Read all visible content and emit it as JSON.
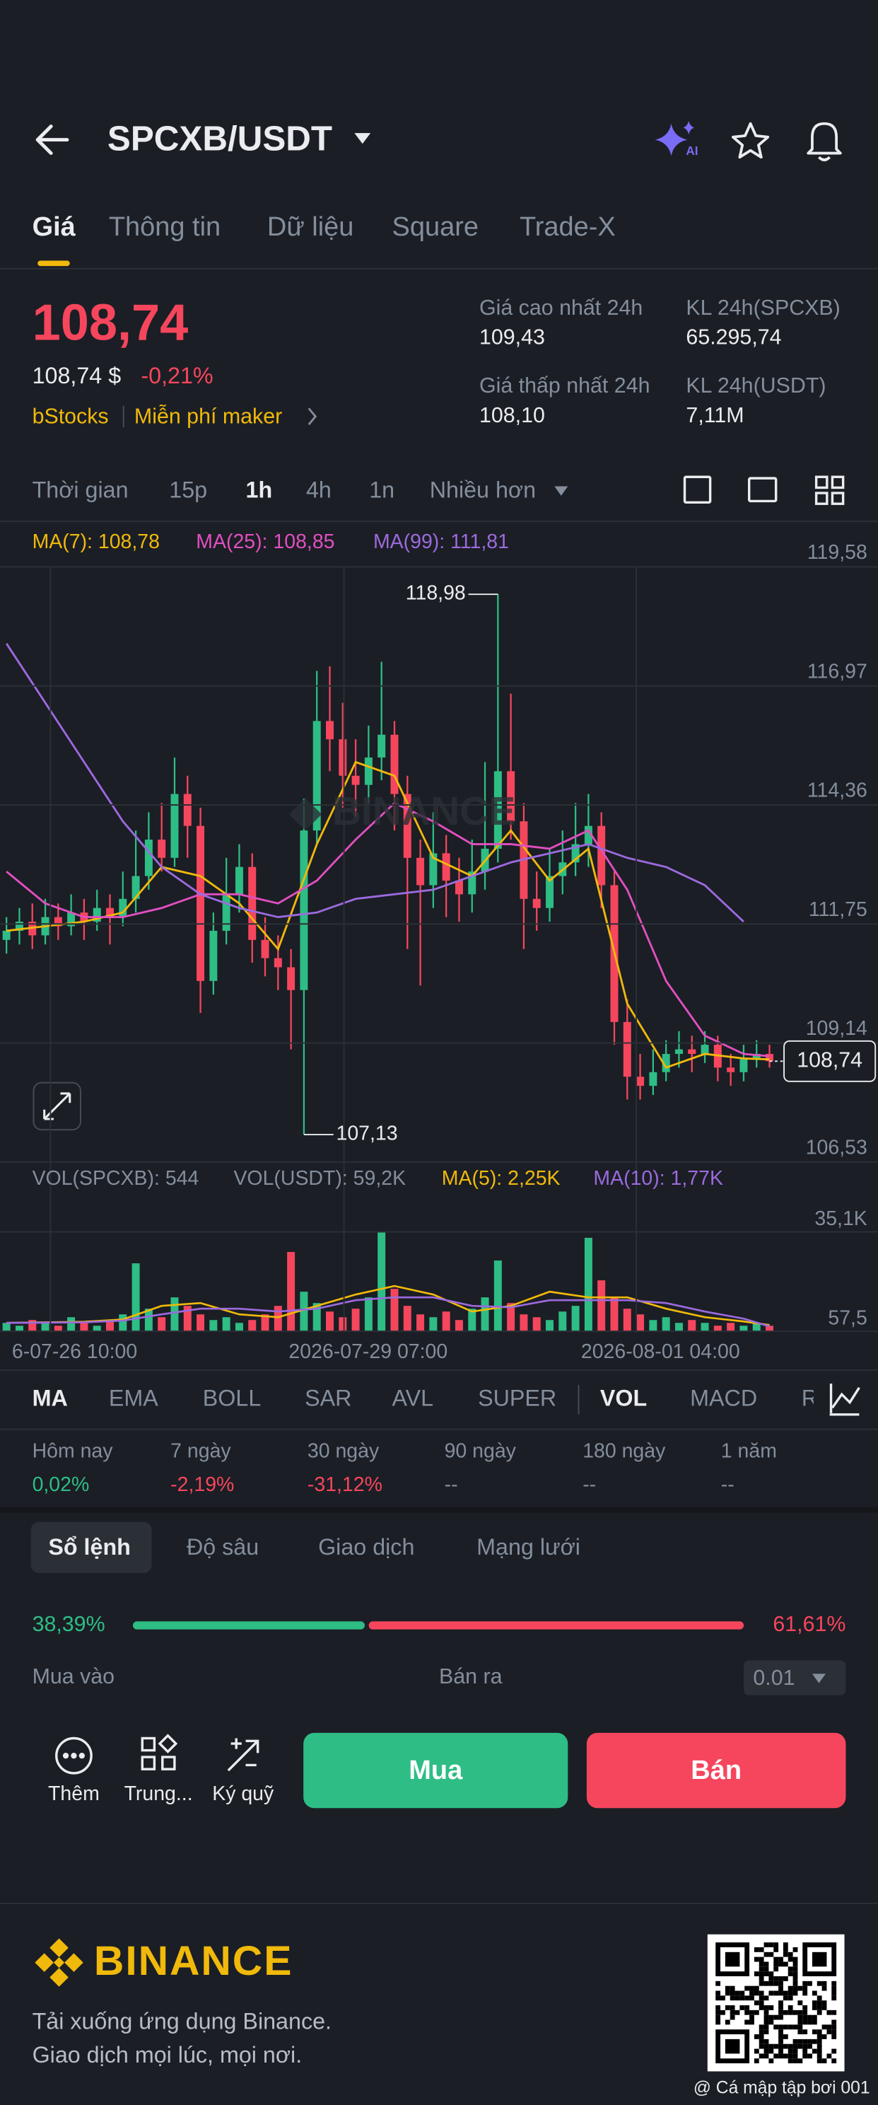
{
  "header": {
    "title": "SPCXB/USDT"
  },
  "tabs": [
    "Giá",
    "Thông tin",
    "Dữ liệu",
    "Square",
    "Trade-X"
  ],
  "price": {
    "last": "108,74",
    "fiat": "108,74 $",
    "change": "-0,21%",
    "tag": "bStocks",
    "promo": "Miễn phí maker"
  },
  "stats": [
    {
      "label": "Giá cao nhất 24h",
      "value": "109,43"
    },
    {
      "label": "KL 24h(SPCXB)",
      "value": "65.295,74"
    },
    {
      "label": "Giá thấp nhất 24h",
      "value": "108,10"
    },
    {
      "label": "KL 24h(USDT)",
      "value": "7,11M"
    }
  ],
  "intervals": [
    "Thời gian",
    "15p",
    "1h",
    "4h",
    "1n",
    "Nhiều hơn"
  ],
  "chart_data": {
    "type": "candlestick",
    "ylim": [
      106.53,
      119.58
    ],
    "yticks": [
      {
        "value": 119.58,
        "label": "119,58"
      },
      {
        "value": 116.97,
        "label": "116,97"
      },
      {
        "value": 114.36,
        "label": "114,36"
      },
      {
        "value": 111.75,
        "label": "111,75"
      },
      {
        "value": 109.14,
        "label": "109,14"
      },
      {
        "value": 106.53,
        "label": "106,53"
      }
    ],
    "xlim": [
      -0.5,
      59.5
    ],
    "xticks": [
      {
        "value": 3.4,
        "label": "6-07-26 10:00"
      },
      {
        "value": 26.1,
        "label": "2026-07-29 07:00"
      },
      {
        "value": 48.7,
        "label": "2026-08-01 04:00"
      }
    ],
    "grid": true,
    "up_color": "#2ebd85",
    "down_color": "#f6465d",
    "high_label": "118,98",
    "low_label": "107,13",
    "last_label": "108,74",
    "candles": [
      [
        111.4,
        111.9,
        111.1,
        111.6
      ],
      [
        111.6,
        112.1,
        111.3,
        111.8
      ],
      [
        111.8,
        112.2,
        111.2,
        111.5
      ],
      [
        111.5,
        112.3,
        111.3,
        111.9
      ],
      [
        111.9,
        112.2,
        111.4,
        111.7
      ],
      [
        111.7,
        112.4,
        111.5,
        112.0
      ],
      [
        112.0,
        112.3,
        111.4,
        111.8
      ],
      [
        111.8,
        112.5,
        111.6,
        112.1
      ],
      [
        112.1,
        112.4,
        111.3,
        111.9
      ],
      [
        111.9,
        112.9,
        111.7,
        112.3
      ],
      [
        112.3,
        113.8,
        112.0,
        112.8
      ],
      [
        112.8,
        114.2,
        112.5,
        113.6
      ],
      [
        113.6,
        114.4,
        112.9,
        113.2
      ],
      [
        113.2,
        115.4,
        113.0,
        114.6
      ],
      [
        114.6,
        115.0,
        113.2,
        113.9
      ],
      [
        113.9,
        114.3,
        109.8,
        110.5
      ],
      [
        110.5,
        112.0,
        110.2,
        111.6
      ],
      [
        111.6,
        113.2,
        111.3,
        112.4
      ],
      [
        112.4,
        113.5,
        112.0,
        113.0
      ],
      [
        113.0,
        113.3,
        110.9,
        111.4
      ],
      [
        111.4,
        111.9,
        110.6,
        111.0
      ],
      [
        111.0,
        111.5,
        110.3,
        110.8
      ],
      [
        110.8,
        111.2,
        109.0,
        110.3
      ],
      [
        110.3,
        114.5,
        107.13,
        113.8
      ],
      [
        113.8,
        117.3,
        113.5,
        116.2
      ],
      [
        116.2,
        117.4,
        115.1,
        115.8
      ],
      [
        115.8,
        116.6,
        114.3,
        115.0
      ],
      [
        115.0,
        115.8,
        114.1,
        114.8
      ],
      [
        114.8,
        116.1,
        114.4,
        115.4
      ],
      [
        115.4,
        117.5,
        114.9,
        115.9
      ],
      [
        115.9,
        116.2,
        113.8,
        114.6
      ],
      [
        114.6,
        115.0,
        111.2,
        113.2
      ],
      [
        113.2,
        113.6,
        110.4,
        112.6
      ],
      [
        112.6,
        114.2,
        112.1,
        113.3
      ],
      [
        113.3,
        113.7,
        111.9,
        112.7
      ],
      [
        112.7,
        113.2,
        111.8,
        112.4
      ],
      [
        112.4,
        113.6,
        112.0,
        112.9
      ],
      [
        112.9,
        115.3,
        112.5,
        113.4
      ],
      [
        113.4,
        118.98,
        113.1,
        115.1
      ],
      [
        115.1,
        116.8,
        113.6,
        114.0
      ],
      [
        114.0,
        114.4,
        111.2,
        112.3
      ],
      [
        112.3,
        112.9,
        111.6,
        112.1
      ],
      [
        112.1,
        113.4,
        111.8,
        112.8
      ],
      [
        112.8,
        113.8,
        112.4,
        113.1
      ],
      [
        113.1,
        114.4,
        112.8,
        113.5
      ],
      [
        113.5,
        114.6,
        113.0,
        113.9
      ],
      [
        113.9,
        114.2,
        112.1,
        112.6
      ],
      [
        112.6,
        112.9,
        109.1,
        109.6
      ],
      [
        109.6,
        110.1,
        107.9,
        108.4
      ],
      [
        108.4,
        108.9,
        107.9,
        108.2
      ],
      [
        108.2,
        109.0,
        108.0,
        108.5
      ],
      [
        108.5,
        109.2,
        108.3,
        108.9
      ],
      [
        108.9,
        109.4,
        108.6,
        109.0
      ],
      [
        109.0,
        109.3,
        108.5,
        108.9
      ],
      [
        108.9,
        109.4,
        108.7,
        109.1
      ],
      [
        109.1,
        109.3,
        108.3,
        108.6
      ],
      [
        108.6,
        108.9,
        108.2,
        108.5
      ],
      [
        108.5,
        109.1,
        108.3,
        108.8
      ],
      [
        108.8,
        109.2,
        108.6,
        108.9
      ],
      [
        108.9,
        109.1,
        108.6,
        108.74
      ]
    ],
    "series": [
      {
        "name": "MA(7): 108,78",
        "color": "#f0b90b",
        "x": [
          0,
          3,
          6,
          9,
          12,
          15,
          18,
          21,
          24,
          27,
          30,
          33,
          36,
          39,
          42,
          45,
          48,
          51,
          54,
          57,
          59
        ],
        "values": [
          111.6,
          111.7,
          111.8,
          112.0,
          113.0,
          112.8,
          112.2,
          111.2,
          113.5,
          115.3,
          115.0,
          113.2,
          112.8,
          113.8,
          112.7,
          113.4,
          110.0,
          108.6,
          108.9,
          108.8,
          108.78
        ]
      },
      {
        "name": "MA(25): 108,85",
        "color": "#e24fc1",
        "x": [
          0,
          3,
          6,
          9,
          12,
          15,
          18,
          21,
          24,
          27,
          30,
          33,
          36,
          39,
          42,
          45,
          48,
          51,
          54,
          57,
          59
        ],
        "values": [
          112.9,
          112.2,
          111.9,
          111.9,
          112.1,
          112.4,
          112.4,
          112.2,
          112.7,
          113.6,
          114.4,
          114.0,
          113.5,
          113.5,
          113.4,
          113.8,
          112.5,
          110.5,
          109.3,
          108.9,
          108.85
        ]
      },
      {
        "name": "MA(99): 111,81",
        "color": "#9c6ade",
        "x": [
          0,
          3,
          6,
          9,
          12,
          15,
          18,
          21,
          24,
          27,
          30,
          33,
          36,
          39,
          42,
          45,
          48,
          51,
          54,
          57
        ],
        "values": [
          117.9,
          116.6,
          115.3,
          114.0,
          113.0,
          112.4,
          112.1,
          111.9,
          112.0,
          112.3,
          112.4,
          112.5,
          112.8,
          113.1,
          113.3,
          113.5,
          113.2,
          113.0,
          112.6,
          111.8
        ]
      }
    ],
    "volume": {
      "legend": [
        "VOL(SPCXB): 544",
        "VOL(USDT): 59,2K"
      ],
      "ylim": [
        57.5,
        35100
      ],
      "yticks": [
        {
          "value": 35100,
          "label": "35,1K"
        },
        {
          "value": 57.5,
          "label": "57,5"
        }
      ],
      "values": [
        3000,
        2000,
        4000,
        3000,
        2000,
        5000,
        3000,
        2000,
        4000,
        6000,
        24000,
        8000,
        5000,
        12000,
        9000,
        6000,
        4000,
        5000,
        3000,
        4000,
        6000,
        9000,
        28000,
        14000,
        10000,
        7000,
        5000,
        8000,
        12000,
        35000,
        15000,
        9000,
        6000,
        5000,
        7000,
        4000,
        8000,
        12000,
        25000,
        10000,
        6000,
        5000,
        4000,
        7000,
        9000,
        33000,
        18000,
        12000,
        8000,
        6000,
        4000,
        5000,
        3000,
        4000,
        3000,
        2000,
        3000,
        2000,
        3000,
        2000
      ],
      "series": [
        {
          "name": "MA(5): 2,25K",
          "color": "#f0b90b",
          "x": [
            0,
            3,
            6,
            9,
            12,
            15,
            18,
            21,
            24,
            27,
            30,
            33,
            36,
            39,
            42,
            45,
            48,
            51,
            54,
            57,
            59
          ],
          "values": [
            3000,
            3200,
            3400,
            4200,
            9000,
            10000,
            6000,
            5000,
            9000,
            13000,
            16000,
            13000,
            7000,
            9000,
            14000,
            12000,
            12000,
            8000,
            5000,
            3500,
            2250
          ]
        },
        {
          "name": "MA(10): 1,77K",
          "color": "#9c6ade",
          "x": [
            0,
            3,
            6,
            9,
            12,
            15,
            18,
            21,
            24,
            27,
            30,
            33,
            36,
            39,
            42,
            45,
            48,
            51,
            54,
            57,
            59
          ],
          "values": [
            3000,
            3100,
            3200,
            3800,
            6000,
            8000,
            8000,
            7000,
            8000,
            11000,
            12000,
            12000,
            9000,
            8500,
            11000,
            11000,
            11000,
            10000,
            7000,
            4500,
            1770
          ]
        }
      ]
    }
  },
  "indicators": [
    "MA",
    "EMA",
    "BOLL",
    "SAR",
    "AVL",
    "SUPER",
    "VOL",
    "MACD",
    "RSI"
  ],
  "performance": [
    {
      "label": "Hôm nay",
      "value": "0,02%"
    },
    {
      "label": "7 ngày",
      "value": "-2,19%"
    },
    {
      "label": "30 ngày",
      "value": "-31,12%"
    },
    {
      "label": "90 ngày",
      "value": "--"
    },
    {
      "label": "180 ngày",
      "value": "--"
    },
    {
      "label": "1 năm",
      "value": "--"
    }
  ],
  "book_tabs": [
    "Sổ lệnh",
    "Độ sâu",
    "Giao dịch",
    "Mạng lưới"
  ],
  "ratio": {
    "buy": {
      "value": 38.39,
      "label": "38,39%"
    },
    "sell": {
      "value": 61.61,
      "label": "61,61%"
    }
  },
  "book_head": {
    "buy": "Mua vào",
    "sell": "Bán ra",
    "precision": "0.01"
  },
  "actions": [
    "Thêm",
    "Trung...",
    "Ký quỹ"
  ],
  "buttons": {
    "buy": "Mua",
    "sell": "Bán"
  },
  "footer": {
    "brand": "BINANCE",
    "line1": "Tải xuống ứng dụng Binance.",
    "line2": "Giao dịch mọi lúc, mọi nơi.",
    "watermark": "@ Cá mập tập bơi 001"
  }
}
